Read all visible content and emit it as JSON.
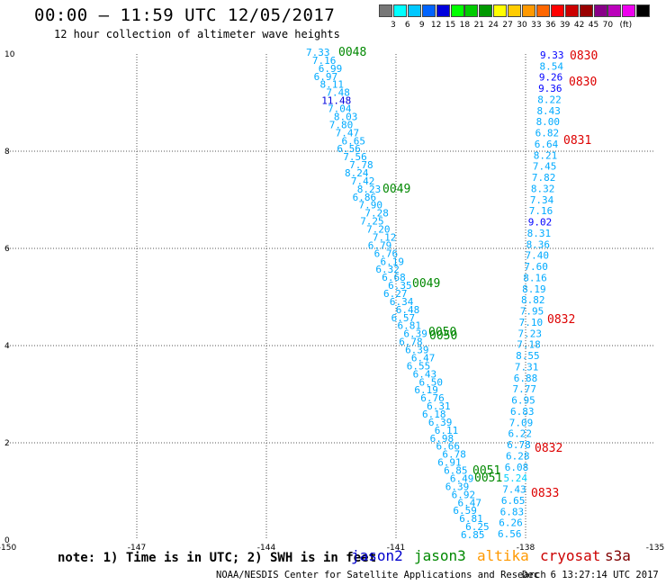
{
  "header": {
    "title": "00:00 – 11:59 UTC 12/05/2017",
    "subtitle": "12 hour collection of altimeter wave heights"
  },
  "colorbar": {
    "colors": [
      "#777777",
      "#00ffff",
      "#00c8ff",
      "#0064ff",
      "#0000dd",
      "#00ff00",
      "#00cc00",
      "#009900",
      "#ffff00",
      "#ffcc00",
      "#ff9900",
      "#ff6600",
      "#ff0000",
      "#cc0000",
      "#990000",
      "#880088",
      "#bb00bb",
      "#ee00ee",
      "#000000"
    ],
    "labels": [
      "3",
      "6",
      "9",
      "12",
      "15",
      "18",
      "21",
      "24",
      "27",
      "30",
      "33",
      "36",
      "39",
      "42",
      "45",
      "70",
      "(ft)"
    ]
  },
  "axes": {
    "x_ticks": [
      "-150",
      "-147",
      "-144",
      "-141",
      "-138",
      "-135"
    ],
    "y_ticks": [
      "0",
      "2",
      "4",
      "6",
      "8",
      "10"
    ],
    "xlim": [
      -150,
      -135
    ],
    "ylim": [
      0,
      10
    ]
  },
  "tracks": {
    "left_pass_values": [
      "7.33",
      "7.16",
      "6.99",
      "6.97",
      "8.11",
      "7.48",
      "11.48",
      "7.04",
      "8.03",
      "7.80",
      "7.47",
      "6.65",
      "6.56",
      "7.56",
      "7.78",
      "8.24",
      "7.42",
      "8.23",
      "6.86",
      "7.90",
      "7.28",
      "7.25",
      "7.20",
      "7.12",
      "6.79",
      "6.76",
      "6.19",
      "6.32",
      "6.68",
      "6.35",
      "6.27",
      "6.34",
      "6.48",
      "6.57",
      "6.81",
      "6.39",
      "6.78",
      "6.39",
      "6.47",
      "6.55",
      "6.43",
      "6.50",
      "6.19",
      "6.76",
      "6.31",
      "6.18",
      "6.39",
      "6.11",
      "6.98",
      "6.66",
      "6.78",
      "6.91",
      "6.85",
      "6.49",
      "6.39",
      "6.92",
      "6.47",
      "6.59",
      "6.81",
      "6.25",
      "6.85"
    ],
    "right_pass_values": [
      "9.33",
      "8.54",
      "9.26",
      "9.36",
      "8.22",
      "8.43",
      "8.00",
      "6.82",
      "6.64",
      "8.21",
      "7.45",
      "7.82",
      "8.32",
      "7.34",
      "7.16",
      "9.02",
      "8.31",
      "8.36",
      "7.40",
      "7.60",
      "8.16",
      "8.19",
      "8.82",
      "7.95",
      "7.10",
      "7.23",
      "7.18",
      "8.55",
      "7.31",
      "6.88",
      "7.77",
      "6.95",
      "6.83",
      "7.09",
      "6.22",
      "6.78",
      "6.28",
      "6.08",
      "5.24",
      "7.43",
      "6.65",
      "6.83",
      "6.26",
      "6.56"
    ]
  },
  "times": {
    "jason3": [
      "0048",
      "0049",
      "0049",
      "0050",
      "0050",
      "0051",
      "0051"
    ],
    "cryosat": [
      "0830",
      "0830",
      "0831",
      "0832",
      "0832",
      "0833"
    ]
  },
  "note": "note: 1) Time is in UTC; 2) SWH is in feet",
  "legend": [
    {
      "name": "jason2",
      "color": "#0000cc"
    },
    {
      "name": "jason3",
      "color": "#008800"
    },
    {
      "name": "altika",
      "color": "#ff9900"
    },
    {
      "name": "cryosat",
      "color": "#cc0000"
    },
    {
      "name": "s3a",
      "color": "#800000"
    }
  ],
  "footer": {
    "credit": "NOAA/NESDIS Center for Satellite Applications and Research",
    "timestamp": "Dec  6 13:27:14 UTC 2017"
  }
}
